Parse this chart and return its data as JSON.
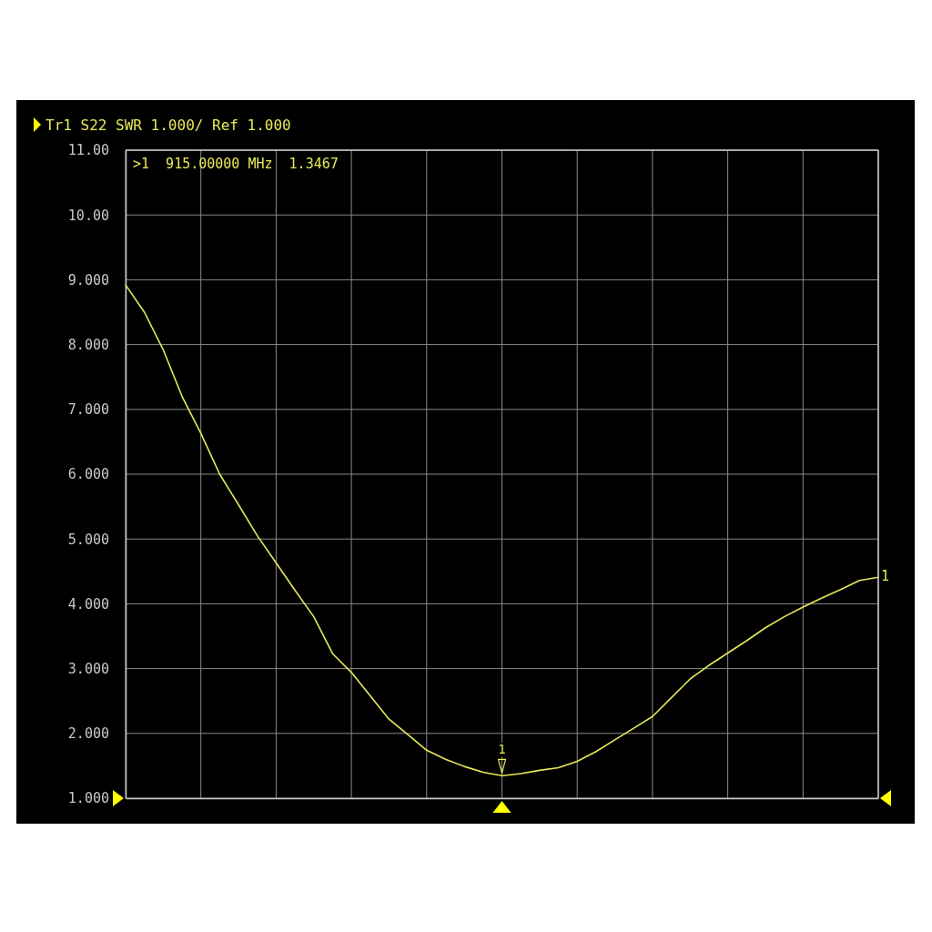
{
  "chart_data": {
    "type": "line",
    "title": "Tr1 S22 SWR 1.000/ Ref 1.000",
    "categories": [
      null,
      null,
      null,
      null,
      null,
      null,
      null,
      null,
      null,
      null,
      null,
      null,
      null,
      null,
      null,
      null,
      null,
      null,
      null,
      null,
      null,
      null,
      null,
      null,
      null,
      null,
      null,
      null,
      null,
      null,
      null,
      null,
      null,
      null,
      null,
      null,
      null,
      null,
      null,
      null,
      null
    ],
    "series": [
      {
        "name": "1",
        "color": "#e8e85a",
        "values": [
          8.92,
          8.5,
          7.92,
          7.2,
          6.63,
          6.0,
          5.53,
          5.05,
          4.63,
          4.21,
          3.8,
          3.23,
          2.94,
          2.58,
          2.22,
          1.98,
          1.74,
          1.6,
          1.49,
          1.4,
          1.3467,
          1.38,
          1.43,
          1.47,
          1.57,
          1.72,
          1.9,
          2.08,
          2.26,
          2.55,
          2.84,
          3.05,
          3.24,
          3.43,
          3.63,
          3.8,
          3.95,
          4.09,
          4.22,
          4.36,
          4.41
        ]
      }
    ],
    "ylim": [
      1,
      11
    ],
    "yticks": [
      {
        "value": 1,
        "label": "1.000"
      },
      {
        "value": 2,
        "label": "2.000"
      },
      {
        "value": 3,
        "label": "3.000"
      },
      {
        "value": 4,
        "label": "4.000"
      },
      {
        "value": 5,
        "label": "5.000"
      },
      {
        "value": 6,
        "label": "6.000"
      },
      {
        "value": 7,
        "label": "7.000"
      },
      {
        "value": 8,
        "label": "8.000"
      },
      {
        "value": 9,
        "label": "9.000"
      },
      {
        "value": 10,
        "label": "10.00"
      },
      {
        "value": 11,
        "label": "11.00"
      }
    ],
    "tick_labels": "y",
    "grid": true,
    "marker": "none",
    "line_style": "solid",
    "annotations": [
      ">1  915.00000 MHz  1.3467",
      {
        "text": "1",
        "y": 1.3467
      }
    ]
  }
}
